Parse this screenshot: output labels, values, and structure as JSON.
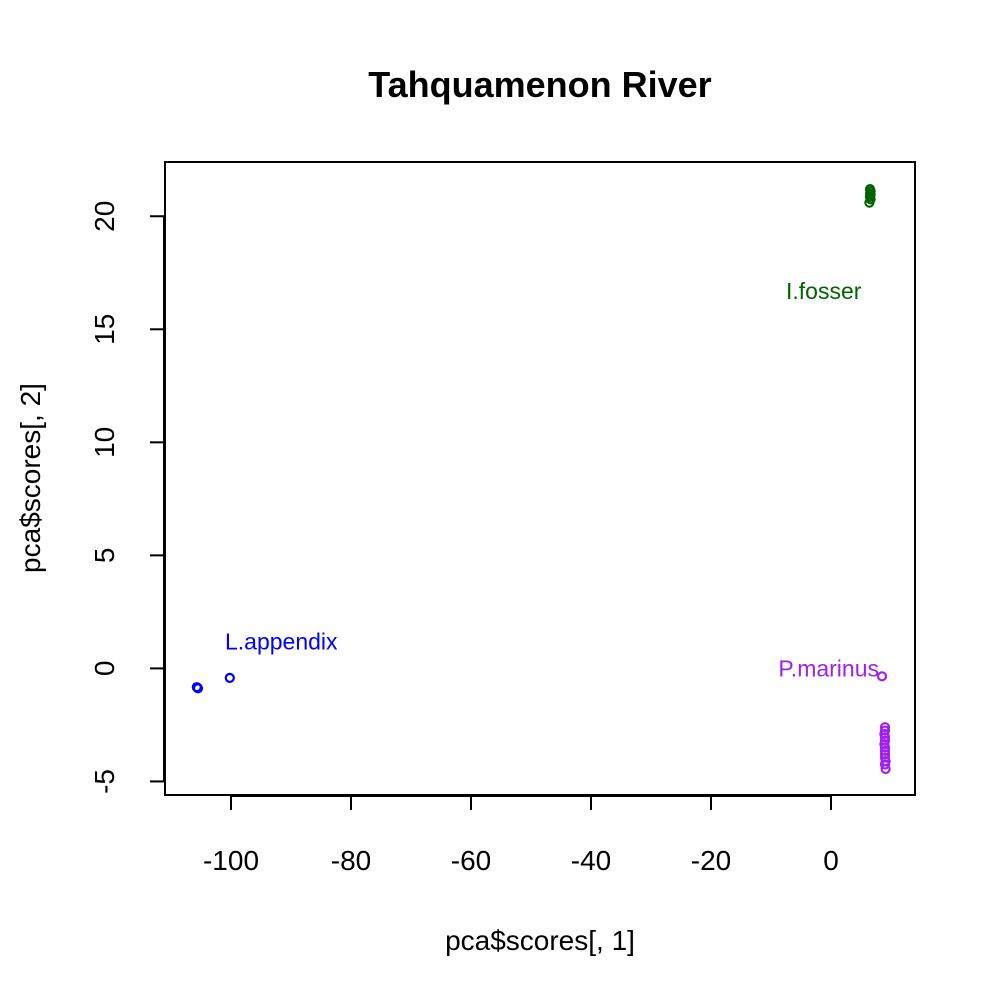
{
  "chart_data": {
    "type": "scatter",
    "title": "Tahquamenon River",
    "xlabel": "pca$scores[, 1]",
    "ylabel": "pca$scores[, 2]",
    "xlim": [
      -111,
      14
    ],
    "ylim": [
      -5.6,
      22.4
    ],
    "x_ticks": [
      -100,
      -80,
      -60,
      -40,
      -20,
      0
    ],
    "y_ticks": [
      -5,
      0,
      5,
      10,
      15,
      20
    ],
    "x_tick_labels": [
      "-100",
      "-80",
      "-60",
      "-40",
      "-20",
      "0"
    ],
    "y_tick_labels": [
      "-5",
      "0",
      "5",
      "10",
      "15",
      "20"
    ],
    "grid": false,
    "legend": "none",
    "series": [
      {
        "color": "#0000ff",
        "points": [
          {
            "x": -105.6,
            "y": -0.85
          },
          {
            "x": -105.5,
            "y": -0.88
          },
          {
            "x": -105.7,
            "y": -0.83
          },
          {
            "x": -100.2,
            "y": -0.42
          }
        ]
      },
      {
        "color": "#006400",
        "points": [
          {
            "x": 6.5,
            "y": 21.2
          },
          {
            "x": 6.6,
            "y": 21.1
          },
          {
            "x": 6.5,
            "y": 21.0
          },
          {
            "x": 6.6,
            "y": 20.95
          },
          {
            "x": 6.5,
            "y": 20.85
          },
          {
            "x": 6.6,
            "y": 20.75
          },
          {
            "x": 6.4,
            "y": 20.6
          }
        ]
      },
      {
        "color": "#a020f0",
        "points": [
          {
            "x": 8.5,
            "y": -0.35
          },
          {
            "x": 9.0,
            "y": -2.6
          },
          {
            "x": 9.0,
            "y": -2.75
          },
          {
            "x": 8.9,
            "y": -2.9
          },
          {
            "x": 9.0,
            "y": -3.05
          },
          {
            "x": 9.0,
            "y": -3.2
          },
          {
            "x": 8.9,
            "y": -3.35
          },
          {
            "x": 9.0,
            "y": -3.5
          },
          {
            "x": 9.0,
            "y": -3.65
          },
          {
            "x": 9.0,
            "y": -3.8
          },
          {
            "x": 9.0,
            "y": -3.95
          },
          {
            "x": 9.1,
            "y": -4.1
          },
          {
            "x": 9.0,
            "y": -4.25
          },
          {
            "x": 9.1,
            "y": -4.45
          }
        ]
      }
    ],
    "annotations": [
      {
        "text": "L.appendix",
        "x": -101,
        "y": 1.2,
        "color": "#0000ff",
        "anchor": "start"
      },
      {
        "text": "I.fosser",
        "x": -7.5,
        "y": 16.7,
        "color": "#006400",
        "anchor": "start"
      },
      {
        "text": "P.marinus",
        "x": 8.0,
        "y": 0.0,
        "color": "#a020f0",
        "anchor": "end"
      }
    ]
  }
}
